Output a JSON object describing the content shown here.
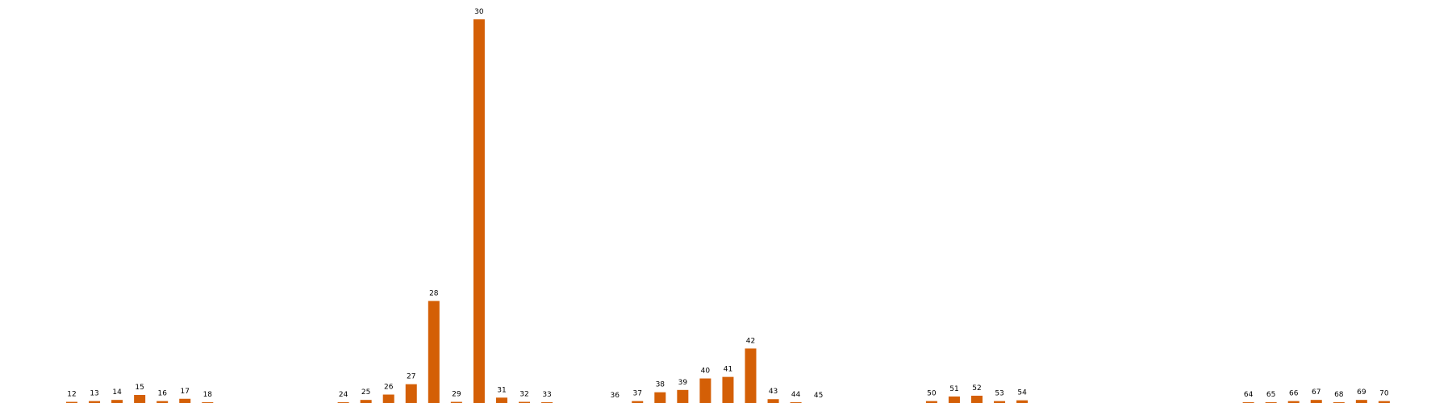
{
  "chart_data": {
    "type": "bar",
    "title": "",
    "xlabel": "",
    "ylabel": "",
    "bar_color": "#D45F06",
    "grid": false,
    "axes_visible": false,
    "ylim": [
      0,
      100
    ],
    "bars": [
      {
        "label": "12",
        "value": 0.3
      },
      {
        "label": "13",
        "value": 0.5
      },
      {
        "label": "14",
        "value": 0.8
      },
      {
        "label": "15",
        "value": 2.1
      },
      {
        "label": "16",
        "value": 0.5
      },
      {
        "label": "17",
        "value": 1.1
      },
      {
        "label": "18",
        "value": 0.2
      },
      {
        "label": "24",
        "value": 0.2
      },
      {
        "label": "25",
        "value": 0.8
      },
      {
        "label": "26",
        "value": 2.2
      },
      {
        "label": "27",
        "value": 4.9
      },
      {
        "label": "28",
        "value": 26.6
      },
      {
        "label": "29",
        "value": 0.3
      },
      {
        "label": "30",
        "value": 100
      },
      {
        "label": "31",
        "value": 1.4
      },
      {
        "label": "32",
        "value": 0.3
      },
      {
        "label": "33",
        "value": 0.2
      },
      {
        "label": "36",
        "value": 0
      },
      {
        "label": "37",
        "value": 0.5
      },
      {
        "label": "38",
        "value": 2.8
      },
      {
        "label": "39",
        "value": 3.4
      },
      {
        "label": "40",
        "value": 6.4
      },
      {
        "label": "41",
        "value": 6.8
      },
      {
        "label": "42",
        "value": 14.2
      },
      {
        "label": "43",
        "value": 1.0
      },
      {
        "label": "44",
        "value": 0.2
      },
      {
        "label": "45",
        "value": 0
      },
      {
        "label": "50",
        "value": 0.5
      },
      {
        "label": "51",
        "value": 1.7
      },
      {
        "label": "52",
        "value": 1.9
      },
      {
        "label": "53",
        "value": 0.5
      },
      {
        "label": "54",
        "value": 0.7
      },
      {
        "label": "64",
        "value": 0.2
      },
      {
        "label": "65",
        "value": 0.2
      },
      {
        "label": "66",
        "value": 0.5
      },
      {
        "label": "67",
        "value": 0.8
      },
      {
        "label": "68",
        "value": 0.2
      },
      {
        "label": "69",
        "value": 0.8
      },
      {
        "label": "70",
        "value": 0.5
      }
    ]
  }
}
